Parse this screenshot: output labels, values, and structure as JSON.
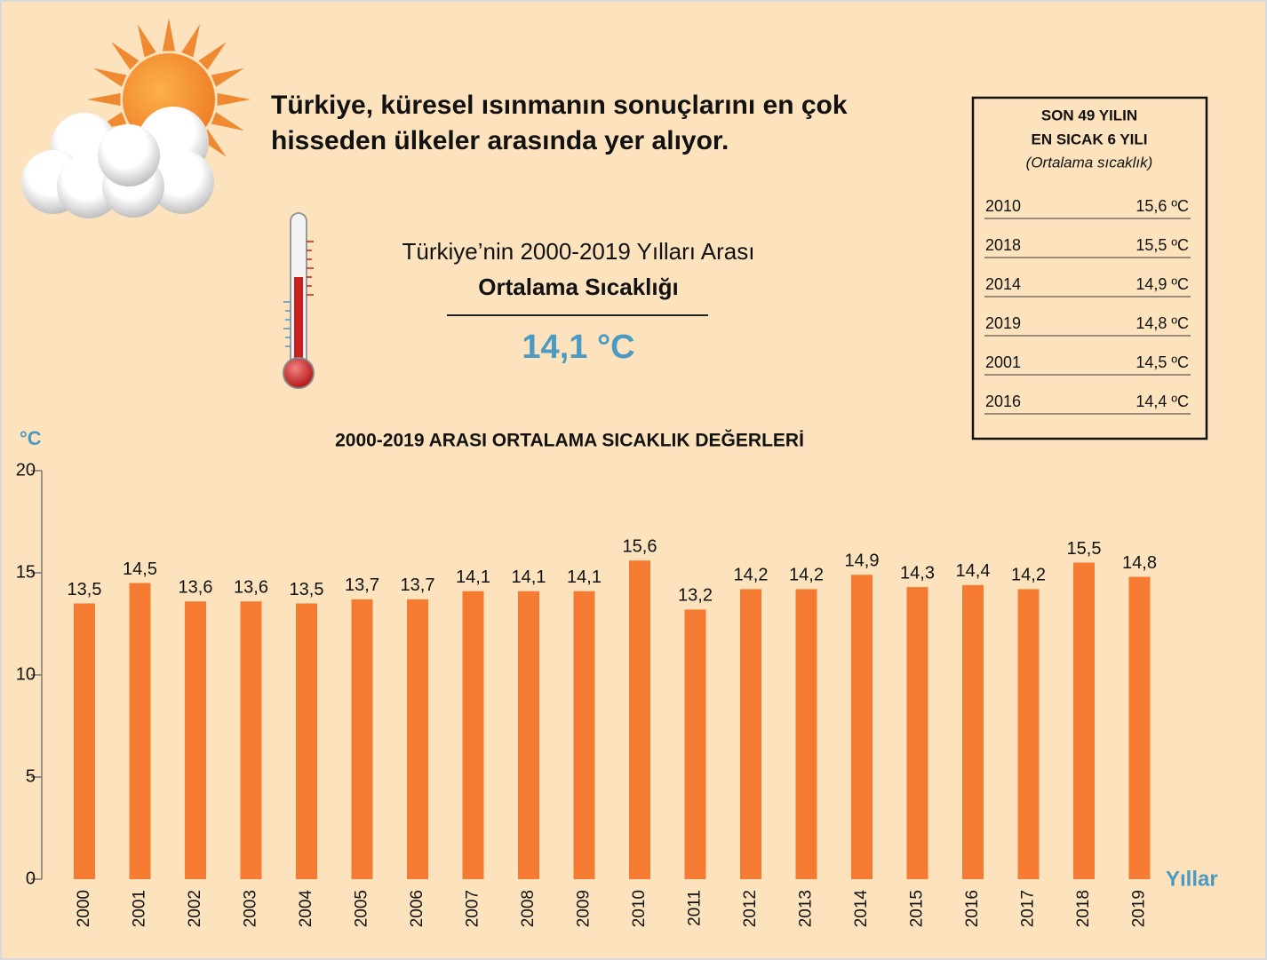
{
  "headline": [
    "Türkiye, küresel ısınmanın sonuçlarını en çok",
    "hisseden ülkeler arasında yer alıyor."
  ],
  "summary": {
    "line1": "Türkiye’nin 2000-2019 Yılları Arası",
    "line2": "Ortalama Sıcaklığı",
    "value": "14,1 °C"
  },
  "table": {
    "title": [
      "SON 49 YILIN",
      "EN SICAK 6 YILI"
    ],
    "subtitle": "(Ortalama sıcaklık)",
    "rows": [
      [
        "2010",
        "15,6 ºC"
      ],
      [
        "2018",
        "15,5 ºC"
      ],
      [
        "2014",
        "14,9 ºC"
      ],
      [
        "2019",
        "14,8 ºC"
      ],
      [
        "2001",
        "14,5 ºC"
      ],
      [
        "2016",
        "14,4 ºC"
      ]
    ]
  },
  "chart_data": {
    "type": "bar",
    "title": "2000-2019 ARASI ORTALAMA SICAKLIK DEĞERLERİ",
    "y_label": "°C",
    "x_label": "Yıllar",
    "categories": [
      "2000",
      "2001",
      "2002",
      "2003",
      "2004",
      "2005",
      "2006",
      "2007",
      "2008",
      "2009",
      "2010",
      "2011",
      "2012",
      "2013",
      "2014",
      "2015",
      "2016",
      "2017",
      "2018",
      "2019"
    ],
    "values": [
      13.5,
      14.5,
      13.6,
      13.6,
      13.5,
      13.7,
      13.7,
      14.1,
      14.1,
      14.1,
      15.6,
      13.2,
      14.2,
      14.2,
      14.9,
      14.3,
      14.4,
      14.2,
      15.5,
      14.8
    ],
    "value_labels": [
      "13,5",
      "14,5",
      "13,6",
      "13,6",
      "13,5",
      "13,7",
      "13,7",
      "14,1",
      "14,1",
      "14,1",
      "15,6",
      "13,2",
      "14,2",
      "14,2",
      "14,9",
      "14,3",
      "14,4",
      "14,2",
      "15,5",
      "14,8"
    ],
    "color": "#f47b31",
    "ylim": [
      0,
      20
    ],
    "yticks": [
      0,
      5,
      10,
      15,
      20
    ]
  }
}
